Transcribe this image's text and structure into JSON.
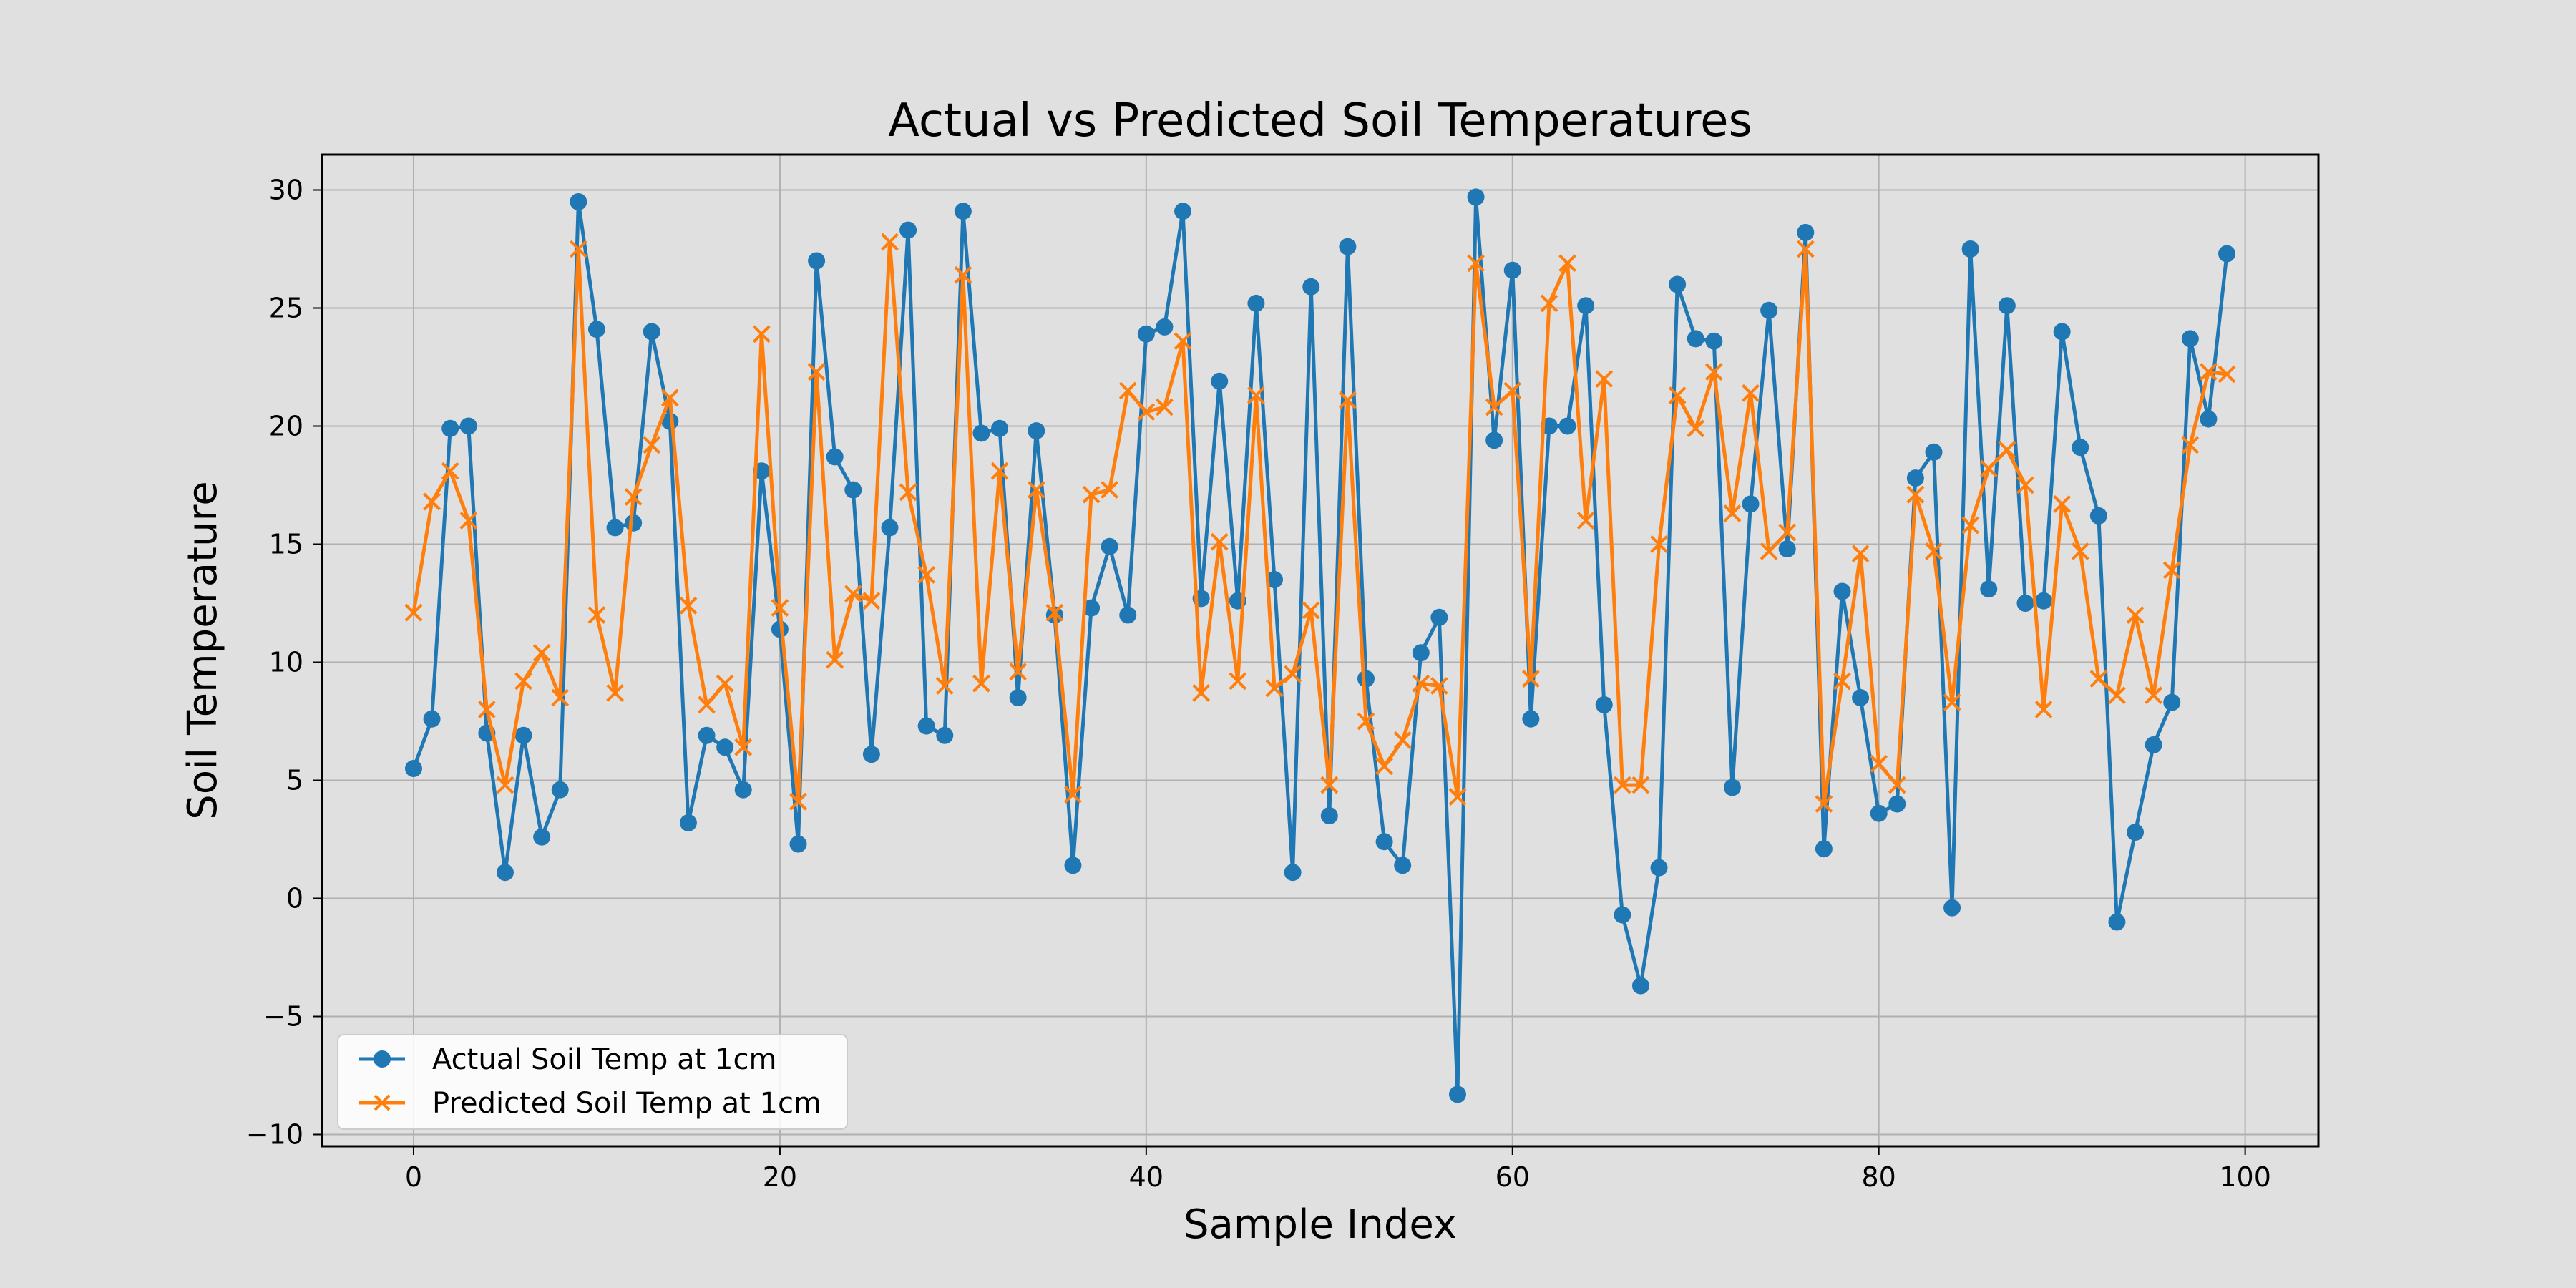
{
  "chart_data": {
    "type": "line",
    "title": "Actual vs Predicted Soil Temperatures",
    "xlabel": "Sample Index",
    "ylabel": "Soil Temperature",
    "xlim": [
      -5,
      104
    ],
    "ylim": [
      -10.5,
      31.5
    ],
    "xticks": [
      0,
      20,
      40,
      60,
      80,
      100
    ],
    "yticks": [
      -10,
      -5,
      0,
      5,
      10,
      15,
      20,
      25,
      30
    ],
    "grid": true,
    "legend_position": "lower-left",
    "x": [
      0,
      1,
      2,
      3,
      4,
      5,
      6,
      7,
      8,
      9,
      10,
      11,
      12,
      13,
      14,
      15,
      16,
      17,
      18,
      19,
      20,
      21,
      22,
      23,
      24,
      25,
      26,
      27,
      28,
      29,
      30,
      31,
      32,
      33,
      34,
      35,
      36,
      37,
      38,
      39,
      40,
      41,
      42,
      43,
      44,
      45,
      46,
      47,
      48,
      49,
      50,
      51,
      52,
      53,
      54,
      55,
      56,
      57,
      58,
      59,
      60,
      61,
      62,
      63,
      64,
      65,
      66,
      67,
      68,
      69,
      70,
      71,
      72,
      73,
      74,
      75,
      76,
      77,
      78,
      79,
      80,
      81,
      82,
      83,
      84,
      85,
      86,
      87,
      88,
      89,
      90,
      91,
      92,
      93,
      94,
      95,
      96,
      97,
      98,
      99
    ],
    "series": [
      {
        "name": "Actual Soil Temp at 1cm",
        "color": "#1f77b4",
        "marker": "circle",
        "values": [
          5.5,
          7.6,
          19.9,
          20.0,
          7.0,
          1.1,
          6.9,
          2.6,
          4.6,
          29.5,
          24.1,
          15.7,
          15.9,
          24.0,
          20.2,
          3.2,
          6.9,
          6.4,
          4.6,
          18.1,
          11.4,
          2.3,
          27.0,
          18.7,
          17.3,
          6.1,
          15.7,
          28.3,
          7.3,
          6.9,
          29.1,
          19.7,
          19.9,
          8.5,
          19.8,
          12.0,
          1.4,
          12.3,
          14.9,
          12.0,
          23.9,
          24.2,
          29.1,
          12.7,
          21.9,
          12.6,
          25.2,
          13.5,
          1.1,
          25.9,
          3.5,
          27.6,
          9.3,
          2.4,
          1.4,
          10.4,
          11.9,
          -8.3,
          29.7,
          19.4,
          26.6,
          7.6,
          20.0,
          20.0,
          25.1,
          8.2,
          -0.7,
          -3.7,
          1.3,
          26.0,
          23.7,
          23.6,
          4.7,
          16.7,
          24.9,
          14.8,
          28.2,
          2.1,
          13.0,
          8.5,
          3.6,
          4.0,
          17.8,
          18.9,
          -0.4,
          27.5,
          13.1,
          25.1,
          12.5,
          12.6,
          24.0,
          19.1,
          16.2,
          -1.0,
          2.8,
          6.5,
          8.3,
          23.7,
          20.3,
          27.3
        ]
      },
      {
        "name": "Predicted Soil Temp at 1cm",
        "color": "#ff7f0e",
        "marker": "x",
        "values": [
          12.1,
          16.8,
          18.1,
          16.0,
          8.0,
          4.8,
          9.2,
          10.4,
          8.5,
          27.5,
          12.0,
          8.7,
          17.0,
          19.2,
          21.2,
          12.4,
          8.2,
          9.1,
          6.4,
          23.9,
          12.3,
          4.1,
          22.3,
          10.1,
          12.9,
          12.6,
          27.8,
          17.2,
          13.7,
          9.0,
          26.4,
          9.1,
          18.1,
          9.6,
          17.3,
          12.1,
          4.4,
          17.1,
          17.3,
          21.5,
          20.6,
          20.8,
          23.6,
          8.7,
          15.1,
          9.2,
          21.3,
          8.9,
          9.5,
          12.2,
          4.8,
          21.1,
          7.5,
          5.6,
          6.7,
          9.1,
          9.0,
          4.3,
          26.9,
          20.8,
          21.5,
          9.3,
          25.2,
          26.9,
          16.0,
          22.0,
          4.8,
          4.8,
          15.0,
          21.3,
          19.9,
          22.3,
          16.3,
          21.4,
          14.7,
          15.5,
          27.5,
          4.0,
          9.2,
          14.6,
          5.7,
          4.8,
          17.1,
          14.7,
          8.3,
          15.8,
          18.2,
          19.0,
          17.5,
          8.0,
          16.7,
          14.7,
          9.3,
          8.6,
          12.0,
          8.6,
          13.9,
          19.2,
          22.3,
          22.2
        ]
      }
    ]
  }
}
